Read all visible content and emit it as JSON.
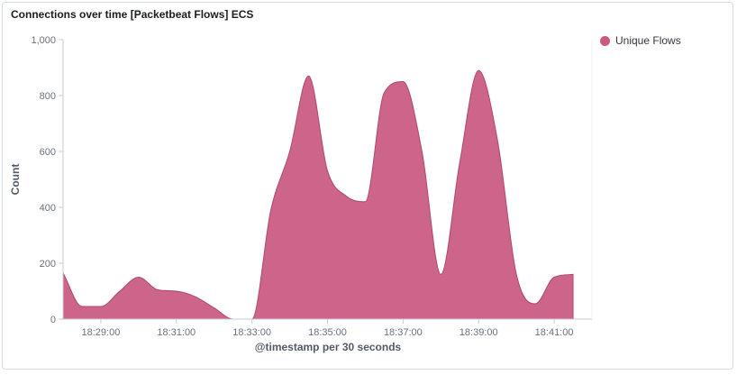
{
  "panel": {
    "title": "Connections over time [Packetbeat Flows] ECS"
  },
  "colors": {
    "series": "#cc6589",
    "series_stroke": "#b0466e",
    "axis": "#c6ccd6",
    "grid": "#eef0f4"
  },
  "chart_data": {
    "type": "area",
    "xlabel": "@timestamp per 30 seconds",
    "ylabel": "Count",
    "ylim": [
      0,
      1000
    ],
    "y_ticks": [
      0,
      200,
      400,
      600,
      800,
      1000
    ],
    "y_tick_labels": [
      "0",
      "200",
      "400",
      "600",
      "800",
      "1,000"
    ],
    "x_range": [
      "18:28:00",
      "18:42:00"
    ],
    "x_ticks": [
      "18:29:00",
      "18:31:00",
      "18:33:00",
      "18:35:00",
      "18:37:00",
      "18:39:00",
      "18:41:00"
    ],
    "grid": false,
    "legend": "right",
    "series": [
      {
        "name": "Unique Flows",
        "x": [
          "18:28:00",
          "18:28:30",
          "18:29:00",
          "18:29:30",
          "18:30:00",
          "18:30:30",
          "18:31:00",
          "18:31:30",
          "18:32:00",
          "18:32:30",
          "18:33:00",
          "18:33:30",
          "18:34:00",
          "18:34:30",
          "18:35:00",
          "18:35:30",
          "18:36:00",
          "18:36:30",
          "18:37:00",
          "18:37:30",
          "18:38:00",
          "18:38:30",
          "18:39:00",
          "18:39:30",
          "18:40:00",
          "18:40:30",
          "18:41:00",
          "18:41:30"
        ],
        "values": [
          165,
          45,
          45,
          100,
          150,
          105,
          100,
          80,
          40,
          0,
          0,
          390,
          600,
          870,
          530,
          440,
          420,
          810,
          850,
          600,
          160,
          560,
          890,
          640,
          160,
          55,
          150,
          160
        ]
      }
    ]
  },
  "legend_items": [
    {
      "label": "Unique Flows"
    }
  ]
}
